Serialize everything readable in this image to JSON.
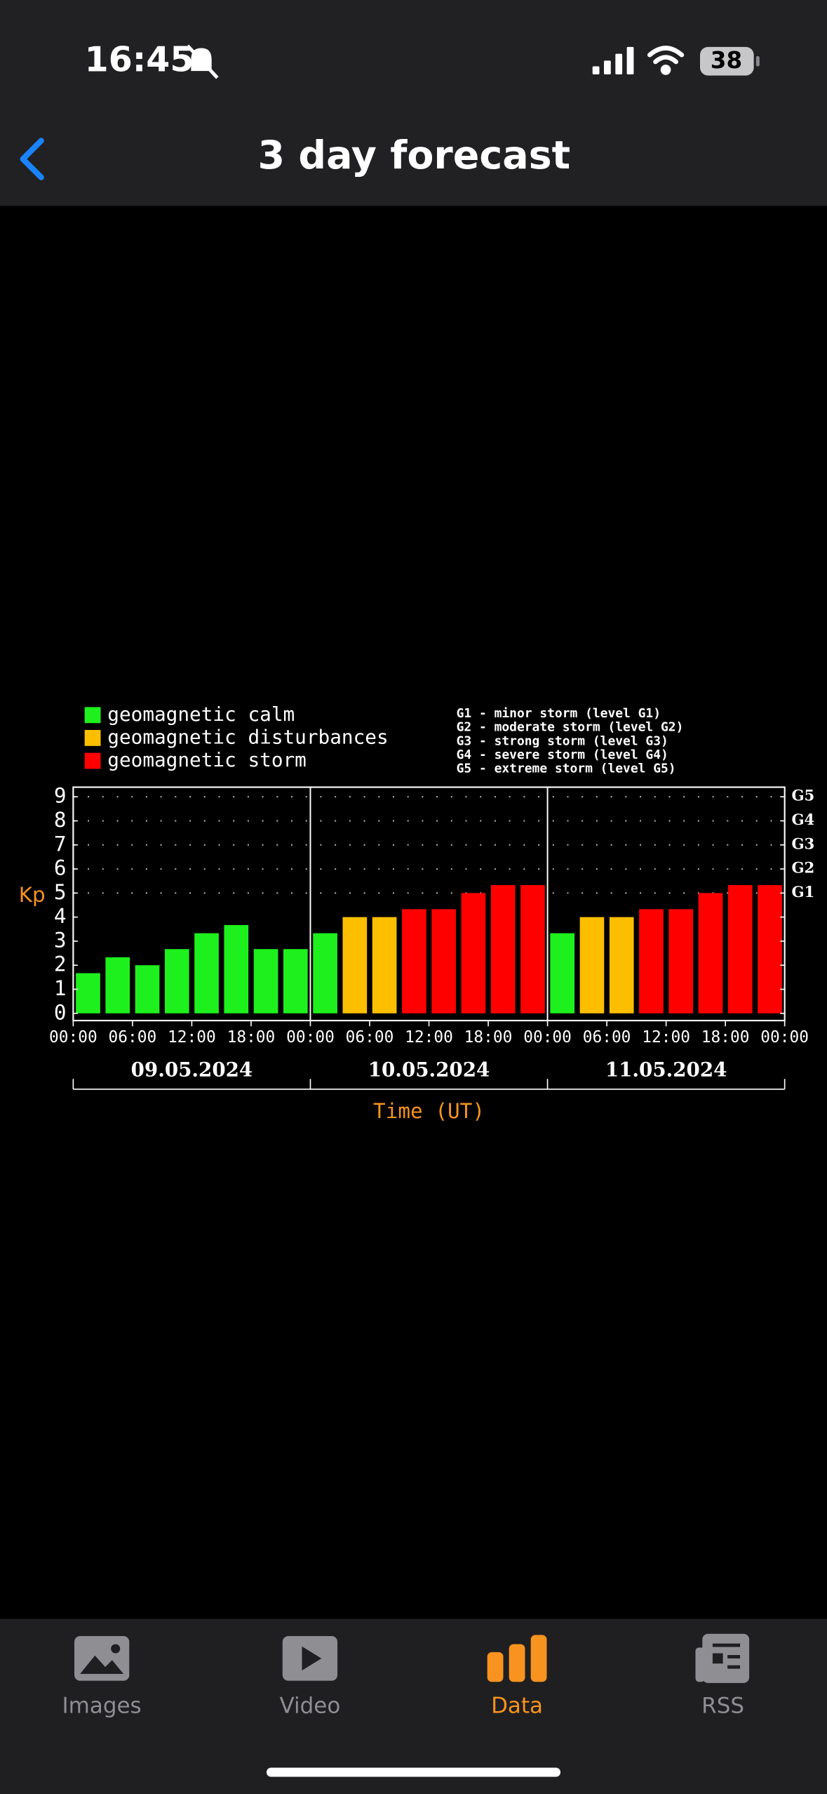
{
  "status_bar": {
    "time": "16:45",
    "battery": "38"
  },
  "nav": {
    "title": "3 day forecast"
  },
  "chart_data": {
    "type": "bar",
    "y_label": "Kp",
    "x_label": "Time (UT)",
    "x": [
      1.5,
      4.5,
      7.5,
      10.5,
      13.5,
      16.5,
      19.5,
      22.5,
      25.5,
      28.5,
      31.5,
      34.5,
      37.5,
      40.5,
      43.5,
      46.5,
      49.5,
      52.5,
      55.5,
      58.5,
      61.5,
      64.5,
      67.5,
      70.5
    ],
    "series": [
      {
        "name": "geomagnetic calm",
        "color": "#1ef01e",
        "values": [
          1.67,
          2.33,
          2,
          2.67,
          3.33,
          3.67,
          2.67,
          2.67,
          3.33,
          null,
          null,
          null,
          null,
          null,
          null,
          null,
          3.33,
          null,
          null,
          null,
          null,
          null,
          null,
          null
        ]
      },
      {
        "name": "geomagnetic disturbances",
        "color": "#fcbf00",
        "values": [
          null,
          null,
          null,
          null,
          null,
          null,
          null,
          null,
          null,
          4,
          4,
          null,
          null,
          null,
          null,
          null,
          null,
          4,
          4,
          null,
          null,
          null,
          null,
          null
        ]
      },
      {
        "name": "geomagnetic storm",
        "color": "#ff0000",
        "values": [
          null,
          null,
          null,
          null,
          null,
          null,
          null,
          null,
          null,
          null,
          null,
          4.33,
          4.33,
          5,
          5.33,
          5.33,
          null,
          null,
          null,
          4.33,
          4.33,
          5,
          5.33,
          5.33
        ]
      }
    ],
    "notes": [
      "G1 - minor storm (level G1)",
      "G2 - moderate storm (level G2)",
      "G3 - strong storm (level G3)",
      "G4 - severe storm (level G4)",
      "G5 - extreme storm (level G5)"
    ],
    "day_labels": [
      "09.05.2024",
      "10.05.2024",
      "11.05.2024"
    ],
    "xlim": [
      0,
      72
    ],
    "xticks": [
      {
        "value": 0,
        "label": "00:00"
      },
      {
        "value": 6,
        "label": "06:00"
      },
      {
        "value": 12,
        "label": "12:00"
      },
      {
        "value": 18,
        "label": "18:00"
      },
      {
        "value": 24,
        "label": "00:00"
      },
      {
        "value": 30,
        "label": "06:00"
      },
      {
        "value": 36,
        "label": "12:00"
      },
      {
        "value": 42,
        "label": "18:00"
      },
      {
        "value": 48,
        "label": "00:00"
      },
      {
        "value": 54,
        "label": "06:00"
      },
      {
        "value": 60,
        "label": "12:00"
      },
      {
        "value": 66,
        "label": "18:00"
      },
      {
        "value": 72,
        "label": "00:00"
      }
    ],
    "ylim": [
      -0.3,
      9.4
    ],
    "yticks": [
      0,
      1,
      2,
      3,
      4,
      5,
      6,
      7,
      8,
      9
    ],
    "y2lim": [
      -0.3,
      9.4
    ],
    "y2ticks": [
      {
        "value": 5,
        "label": "G1"
      },
      {
        "value": 6,
        "label": "G2"
      },
      {
        "value": 7,
        "label": "G3"
      },
      {
        "value": 8,
        "label": "G4"
      },
      {
        "value": 9,
        "label": "G5"
      }
    ],
    "grid": "dotted"
  },
  "tab_bar": {
    "tabs": [
      "Images",
      "Video",
      "Data",
      "RSS"
    ],
    "active": 2
  }
}
